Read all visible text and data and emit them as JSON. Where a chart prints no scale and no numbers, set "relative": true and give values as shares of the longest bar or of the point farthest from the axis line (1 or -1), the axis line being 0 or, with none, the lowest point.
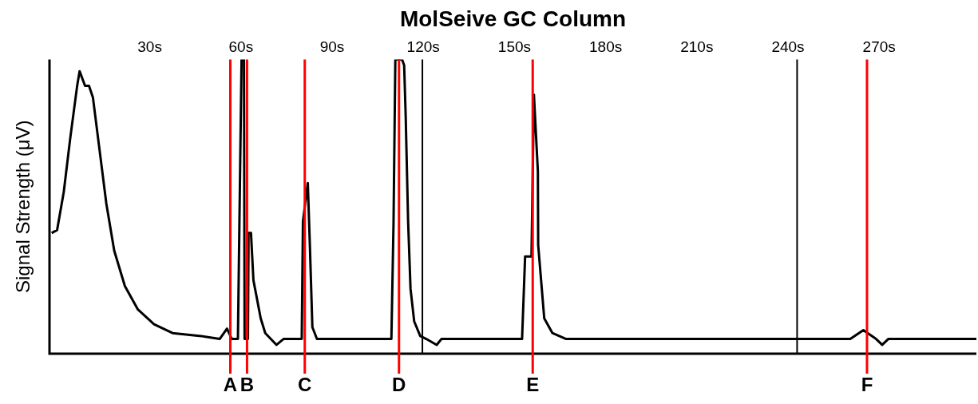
{
  "chart_data": {
    "type": "line",
    "title": "MolSeive GC Column",
    "ylabel": "Signal Strength (μV)",
    "relative": true,
    "x": [
      -2.3,
      -0.5,
      1.7,
      3.8,
      6.1,
      6.9,
      8.7,
      10.0,
      11.3,
      13.5,
      15.7,
      18.3,
      21.8,
      26.1,
      31.4,
      37.5,
      47,
      53,
      55.4,
      57,
      59,
      59.5,
      60.2,
      61,
      61.2,
      62.3,
      62.5,
      63.3,
      64.1,
      66.5,
      68,
      71.7,
      74,
      80,
      80.4,
      82,
      82.7,
      83.5,
      85,
      109.5,
      110.2,
      110.8,
      113,
      113.7,
      114.2,
      115,
      115.8,
      117,
      119,
      121,
      124.4,
      126,
      152.5,
      153.5,
      155.6,
      156.4,
      157.7,
      157.8,
      159.8,
      162.5,
      167,
      260.5,
      264.8,
      269,
      271,
      273,
      302
    ],
    "series": [
      {
        "color": "#000000",
        "values": [
          0.41,
          0.42,
          0.55,
          0.73,
          0.91,
          0.96,
          0.91,
          0.91,
          0.87,
          0.69,
          0.51,
          0.35,
          0.23,
          0.15,
          0.1,
          0.07,
          0.06,
          0.05,
          0.085,
          0.05,
          0.05,
          0.45,
          1,
          1,
          0.05,
          0.05,
          0.41,
          0.41,
          0.25,
          0.12,
          0.07,
          0.03,
          0.05,
          0.05,
          0.45,
          0.58,
          0.36,
          0.09,
          0.05,
          0.05,
          0.44,
          1,
          1,
          0.98,
          0.81,
          0.45,
          0.22,
          0.11,
          0.06,
          0.05,
          0.03,
          0.05,
          0.05,
          0.33,
          0.33,
          0.88,
          0.62,
          0.37,
          0.12,
          0.07,
          0.05,
          0.05,
          0.08,
          0.05,
          0.03,
          0.05,
          0.05
        ]
      }
    ],
    "xlim": [
      -3,
      302
    ],
    "xticks": [
      {
        "value": 30,
        "label": "30s"
      },
      {
        "value": 60,
        "label": "60s"
      },
      {
        "value": 90,
        "label": "90s"
      },
      {
        "value": 120,
        "label": "120s"
      },
      {
        "value": 150,
        "label": "150s"
      },
      {
        "value": 180,
        "label": "180s"
      },
      {
        "value": 210,
        "label": "210s"
      },
      {
        "value": 240,
        "label": "240s"
      },
      {
        "value": 270,
        "label": "270s"
      }
    ],
    "ref_lines": [
      {
        "axis": "x",
        "value": 56.5,
        "label": "A",
        "color": "#ff0000"
      },
      {
        "axis": "x",
        "value": 62,
        "label": "B",
        "color": "#ff0000"
      },
      {
        "axis": "x",
        "value": 81,
        "label": "C",
        "color": "#ff0000"
      },
      {
        "axis": "x",
        "value": 112,
        "label": "D",
        "color": "#ff0000"
      },
      {
        "axis": "x",
        "value": 156,
        "label": "E",
        "color": "#ff0000"
      },
      {
        "axis": "x",
        "value": 266,
        "label": "F",
        "color": "#ff0000"
      },
      {
        "axis": "x",
        "value": 119.7,
        "color": "#000000"
      },
      {
        "axis": "x",
        "value": 243,
        "color": "#000000"
      }
    ],
    "grid": false,
    "legend": false,
    "marker": "none",
    "line_style": "solid"
  }
}
